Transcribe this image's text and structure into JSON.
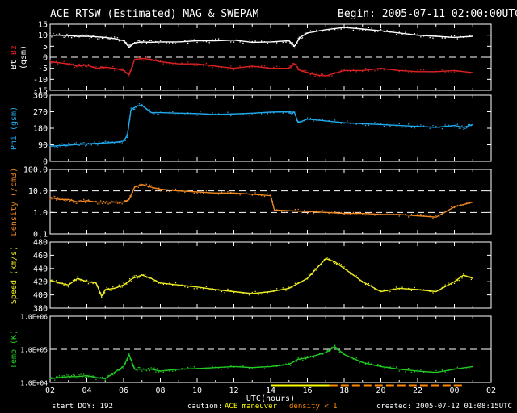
{
  "header": {
    "title": "ACE RTSW (Estimated) MAG & SWEPAM",
    "begin": "Begin: 2005-07-11 02:00:00UTC"
  },
  "footer": {
    "start_doy": "start DOY: 192",
    "caution_label": "caution:",
    "maneuver_label": "ACE maneuver",
    "density_label": "density < 1",
    "created": "created: 2005-07-12 01:08:15UTC"
  },
  "colors": {
    "bt": "#ffffff",
    "bz": "#dd2222",
    "phi": "#22aaee",
    "density": "#ee8822",
    "speed": "#eeee22",
    "temp": "#22cc22",
    "maneuver": "#ffff00",
    "lowdensity": "#ff8800",
    "frame": "#ffffff"
  },
  "chart_data": [
    {
      "type": "line",
      "ylabel_prefix": "Bt",
      "ylabel_suffix": "Bz",
      "ylabel_unit": "(gsm)",
      "ylim": [
        -15,
        15
      ],
      "yticks": [
        "15",
        "10",
        "5",
        "0",
        "-5",
        "-10",
        "-15"
      ],
      "hlines": [
        0
      ],
      "series": [
        {
          "key": "bt",
          "x": [
            2.0,
            2.5,
            3.0,
            3.5,
            4.0,
            4.5,
            5.0,
            5.5,
            6.0,
            6.3,
            6.6,
            7.0,
            7.5,
            8.0,
            9.0,
            10.0,
            11.0,
            12.0,
            13.0,
            14.0,
            15.0,
            15.3,
            15.6,
            16.0,
            17.0,
            18.0,
            19.0,
            20.0,
            21.0,
            22.0,
            23.0,
            24.0,
            25.0
          ],
          "y": [
            10,
            10,
            9.8,
            9.5,
            9.5,
            9.3,
            9,
            8.5,
            7.5,
            4.5,
            6.5,
            7,
            6.8,
            7,
            7,
            7.5,
            7.5,
            7.8,
            6.8,
            7,
            7.5,
            5,
            9,
            11,
            12.5,
            13.5,
            12.8,
            12,
            11,
            10,
            9.5,
            9,
            9.5
          ]
        },
        {
          "key": "bz",
          "x": [
            2.0,
            2.5,
            3.0,
            3.5,
            4.0,
            4.5,
            5.0,
            5.5,
            6.0,
            6.3,
            6.6,
            7.0,
            7.5,
            8.0,
            9.0,
            10.0,
            11.0,
            12.0,
            13.0,
            14.0,
            15.0,
            15.3,
            15.6,
            16.0,
            16.5,
            17.0,
            18.0,
            19.0,
            20.0,
            21.0,
            22.0,
            23.0,
            24.0,
            25.0
          ],
          "y": [
            -2,
            -2.5,
            -3,
            -4,
            -3.5,
            -5,
            -4.5,
            -5,
            -6,
            -8,
            -1,
            -0.5,
            -1,
            -2,
            -3,
            -3,
            -4,
            -5,
            -4,
            -5,
            -5,
            -3,
            -6,
            -7,
            -8,
            -8.5,
            -6,
            -6,
            -5,
            -6,
            -6.5,
            -6.5,
            -6,
            -7
          ]
        }
      ]
    },
    {
      "type": "line",
      "ylabel": "Phi (gsm)",
      "ylim": [
        0,
        360
      ],
      "yticks": [
        "360",
        "270",
        "180",
        "90",
        "0"
      ],
      "hlines": [],
      "series": [
        {
          "key": "phi",
          "x": [
            2.0,
            2.5,
            3.0,
            3.5,
            4.0,
            4.5,
            5.0,
            5.5,
            6.0,
            6.2,
            6.4,
            6.7,
            7.0,
            7.5,
            8.0,
            9.0,
            10.0,
            11.0,
            12.0,
            13.0,
            14.0,
            15.0,
            15.3,
            15.5,
            16.0,
            17.0,
            18.0,
            19.0,
            20.0,
            21.0,
            22.0,
            23.0,
            24.0,
            24.5,
            25.0
          ],
          "y": [
            82,
            85,
            88,
            92,
            95,
            98,
            100,
            103,
            110,
            140,
            280,
            300,
            305,
            265,
            265,
            262,
            260,
            255,
            258,
            262,
            268,
            270,
            265,
            210,
            230,
            220,
            210,
            205,
            200,
            195,
            190,
            185,
            195,
            185,
            200
          ]
        }
      ]
    },
    {
      "type": "line",
      "ylabel": "Density (/cm3)",
      "yscale": "log",
      "ylim": [
        0.1,
        100
      ],
      "yticks": [
        "100.0",
        "10.0",
        "1.0",
        "0.1"
      ],
      "hlines": [
        10,
        1
      ],
      "series": [
        {
          "key": "density",
          "x": [
            2.0,
            2.5,
            3.0,
            3.5,
            4.0,
            4.5,
            5.0,
            5.5,
            6.0,
            6.3,
            6.6,
            7.0,
            7.5,
            8.0,
            9.0,
            10.0,
            11.0,
            12.0,
            13.0,
            14.0,
            14.2,
            15.0,
            16.0,
            17.0,
            18.0,
            19.0,
            20.0,
            21.0,
            22.0,
            23.0,
            24.0,
            25.0
          ],
          "y": [
            5,
            4,
            4,
            3,
            3.5,
            3,
            3,
            3,
            3,
            4,
            15,
            20,
            15,
            12,
            10,
            9,
            8,
            8,
            7,
            6,
            1.3,
            1.2,
            1.1,
            1.0,
            0.9,
            0.9,
            0.8,
            0.8,
            0.7,
            0.6,
            1.8,
            3
          ]
        }
      ]
    },
    {
      "type": "line",
      "ylabel": "Speed (km/s)",
      "ylim": [
        380,
        480
      ],
      "yticks": [
        "480",
        "460",
        "440",
        "420",
        "400",
        "380"
      ],
      "hlines": [],
      "series": [
        {
          "key": "speed",
          "x": [
            2.0,
            2.5,
            3.0,
            3.5,
            4.0,
            4.5,
            4.8,
            5.0,
            5.5,
            6.0,
            6.5,
            7.0,
            7.5,
            8.0,
            9.0,
            10.0,
            11.0,
            12.0,
            13.0,
            14.0,
            15.0,
            16.0,
            16.5,
            17.0,
            17.5,
            18.0,
            19.0,
            20.0,
            21.0,
            22.0,
            23.0,
            24.0,
            24.5,
            25.0
          ],
          "y": [
            422,
            418,
            415,
            425,
            420,
            418,
            398,
            408,
            410,
            415,
            425,
            430,
            425,
            418,
            415,
            412,
            408,
            405,
            402,
            405,
            410,
            425,
            440,
            455,
            450,
            440,
            420,
            405,
            410,
            408,
            405,
            420,
            430,
            425
          ]
        }
      ]
    },
    {
      "type": "scatter",
      "ylabel": "Temp (K)",
      "yscale": "log",
      "ylim": [
        10000,
        1000000
      ],
      "yticks": [
        "1.0E+06",
        "1.0E+05",
        "1.0E+04"
      ],
      "hlines": [
        100000
      ],
      "series": [
        {
          "key": "temp",
          "x": [
            2.0,
            2.5,
            3.0,
            3.5,
            4.0,
            4.5,
            5.0,
            5.5,
            6.0,
            6.3,
            6.6,
            7.0,
            7.5,
            8.0,
            9.0,
            10.0,
            11.0,
            12.0,
            13.0,
            14.0,
            15.0,
            15.5,
            16.0,
            17.0,
            17.5,
            18.0,
            19.0,
            20.0,
            21.0,
            22.0,
            23.0,
            24.0,
            25.0
          ],
          "y": [
            13000,
            14000,
            15000,
            15000,
            16000,
            14000,
            13000,
            20000,
            30000,
            70000,
            25000,
            25000,
            25000,
            22000,
            25000,
            26000,
            28000,
            30000,
            28000,
            30000,
            35000,
            50000,
            55000,
            80000,
            120000,
            70000,
            40000,
            30000,
            25000,
            22000,
            20000,
            25000,
            30000
          ]
        }
      ]
    }
  ],
  "x_axis": {
    "label": "UTC(hours)",
    "range": [
      2,
      26
    ],
    "ticks": [
      "02",
      "04",
      "06",
      "08",
      "10",
      "12",
      "14",
      "16",
      "18",
      "20",
      "22",
      "00",
      "02"
    ]
  },
  "maneuver_bar": {
    "x": [
      14.0,
      17.2
    ]
  },
  "lowdensity_bar": {
    "x": [
      17.2,
      24.5
    ]
  }
}
